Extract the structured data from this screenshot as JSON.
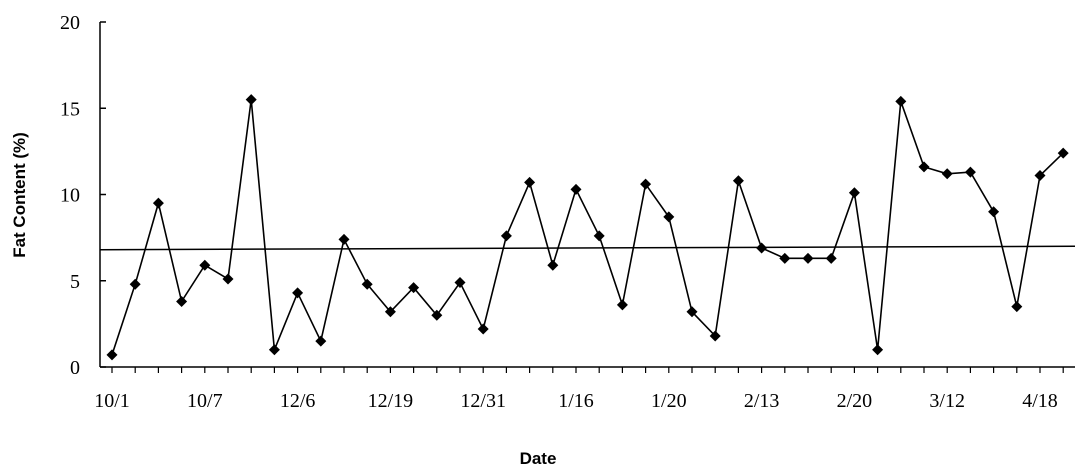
{
  "chart_data": {
    "type": "line",
    "xlabel": "Date",
    "ylabel": "Fat Content (%)",
    "ylim": [
      0,
      20
    ],
    "yticks": [
      0,
      5,
      10,
      15,
      20
    ],
    "grid": false,
    "legend": "none",
    "line_color": "#000000",
    "xtick_labels": [
      "10/1",
      "10/7",
      "12/6",
      "12/19",
      "12/31",
      "1/16",
      "1/20",
      "2/13",
      "2/20",
      "3/12",
      "4/18"
    ],
    "xtick_label_positions": [
      0,
      4,
      8,
      12,
      16,
      20,
      24,
      28,
      32,
      36,
      40
    ],
    "series": [
      {
        "values": [
          0.7,
          4.8,
          9.5,
          3.8,
          5.9,
          5.1,
          15.5,
          1.0,
          4.3,
          1.5,
          7.4,
          4.8,
          3.2,
          4.6,
          3.0,
          4.9,
          2.2,
          7.6,
          10.7,
          5.9,
          10.3,
          7.6,
          3.6,
          10.6,
          8.7,
          3.2,
          1.8,
          10.8,
          6.9,
          6.3,
          6.3,
          6.3,
          10.1,
          1.0,
          15.4,
          11.6,
          11.2,
          11.3,
          9.0,
          3.5,
          11.1,
          12.4
        ]
      }
    ],
    "reference_line": {
      "start": 6.8,
      "end": 7.0
    }
  }
}
